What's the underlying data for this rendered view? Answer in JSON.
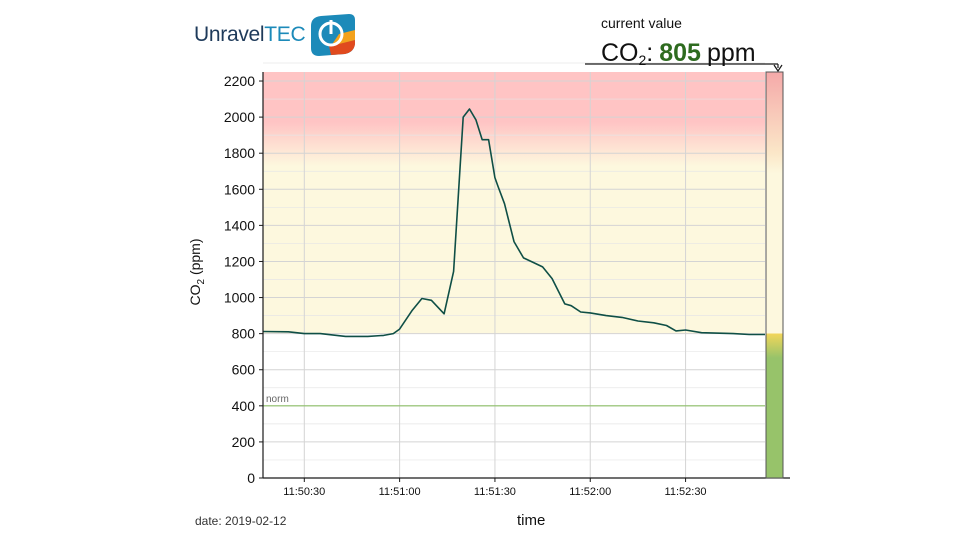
{
  "brand": {
    "name_part1": "Unravel",
    "name_part2": "TEC"
  },
  "current_value": {
    "label": "current value",
    "quantity": "CO",
    "quantity_sub": "2",
    "separator": ":",
    "value": "805",
    "unit": "ppm"
  },
  "date_text": "date: 2019-02-12",
  "colors": {
    "line": "#0f4f46",
    "norm_line": "#8fc06a",
    "zone_red": "#ffc4c4",
    "zone_yellow": "#fdf8de",
    "gauge_green": "#97c36a",
    "gauge_yellow": "#f2d65a",
    "grid": "#d4d4d4",
    "current_value_text": "#2e6b1f"
  },
  "chart_data": {
    "type": "line",
    "xlabel": "time",
    "ylabel_main": "CO",
    "ylabel_sub": "2",
    "ylabel_unit": " (ppm)",
    "ylim": [
      0,
      2250
    ],
    "yticks": [
      0,
      200,
      400,
      600,
      800,
      1000,
      1200,
      1400,
      1600,
      1800,
      2000,
      2200
    ],
    "xlim": [
      "11:50:17",
      "11:52:55"
    ],
    "xticks": [
      "11:50:30",
      "11:51:00",
      "11:51:30",
      "11:52:00",
      "11:52:30"
    ],
    "grid": true,
    "norm": {
      "value": 400,
      "label": "norm"
    },
    "zones": [
      {
        "name": "red",
        "from": 1800,
        "to": 2250
      },
      {
        "name": "yellow",
        "from": 800,
        "to": 1800
      }
    ],
    "gauge": {
      "green_to": 800,
      "yellow_to": 1800,
      "max": 2250
    },
    "series": [
      {
        "x": [
          "11:50:17",
          "11:50:25",
          "11:50:30",
          "11:50:35",
          "11:50:43",
          "11:50:50",
          "11:50:55",
          "11:50:58",
          "11:51:00",
          "11:51:04",
          "11:51:07",
          "11:51:10",
          "11:51:14",
          "11:51:17",
          "11:51:20",
          "11:51:22",
          "11:51:24",
          "11:51:26",
          "11:51:28",
          "11:51:30",
          "11:51:31",
          "11:51:33",
          "11:51:36",
          "11:51:39",
          "11:51:42",
          "11:51:45",
          "11:51:48",
          "11:51:52",
          "11:51:54",
          "11:51:57",
          "11:52:00",
          "11:52:05",
          "11:52:10",
          "11:52:15",
          "11:52:20",
          "11:52:24",
          "11:52:27",
          "11:52:30",
          "11:52:35",
          "11:52:45",
          "11:52:50",
          "11:52:55"
        ],
        "y": [
          812,
          810,
          800,
          800,
          785,
          785,
          790,
          800,
          825,
          930,
          995,
          985,
          910,
          1145,
          2000,
          2045,
          1985,
          1875,
          1875,
          1665,
          1615,
          1520,
          1310,
          1220,
          1195,
          1170,
          1105,
          965,
          955,
          920,
          915,
          900,
          890,
          870,
          860,
          845,
          815,
          820,
          805,
          800,
          795,
          795
        ]
      }
    ]
  }
}
